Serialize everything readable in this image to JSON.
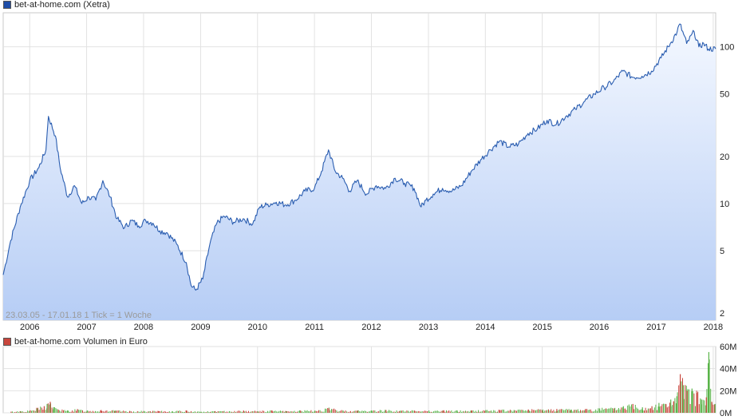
{
  "colors": {
    "price_line": "#2a5db0",
    "price_fill_top": "#f4f8ff",
    "price_fill_bottom": "#b6cdf5",
    "volume_up": "#5ab44a",
    "volume_down": "#c8463c",
    "grid": "#e2e2e2",
    "frame": "#c9c9c9",
    "legend_price": "#1f4ea8",
    "legend_volume": "#c8463c"
  },
  "legend": {
    "price": "bet-at-home.com (Xetra)",
    "volume": "bet-at-home.com Volumen in Euro"
  },
  "range_label": "23.03.05 - 17.01.18   1 Tick = 1 Woche",
  "chart_data": [
    {
      "type": "line",
      "title": "bet-at-home.com (Xetra)",
      "y_scale": "log",
      "ylim": [
        1.8,
        165
      ],
      "y_ticks": [
        2,
        5,
        10,
        20,
        50,
        100
      ],
      "y_tick_labels": [
        "2",
        "5",
        "10",
        "20",
        "50",
        "100"
      ],
      "x_tick_labels": [
        "2006",
        "2007",
        "2008",
        "2009",
        "2010",
        "2011",
        "2012",
        "2013",
        "2014",
        "2015",
        "2016",
        "2017",
        "2018"
      ],
      "xlim": [
        "2005-07-15",
        "2018-01-17"
      ],
      "grid": true,
      "series": [
        {
          "name": "bet-at-home.com (Xetra)",
          "x": [
            "2005-07-15",
            "2005-09-01",
            "2005-11-01",
            "2006-01-01",
            "2006-03-01",
            "2006-04-15",
            "2006-05-01",
            "2006-06-15",
            "2006-07-15",
            "2006-09-01",
            "2006-10-15",
            "2006-12-01",
            "2007-01-15",
            "2007-03-01",
            "2007-04-15",
            "2007-06-01",
            "2007-07-15",
            "2007-09-01",
            "2007-10-15",
            "2007-12-01",
            "2008-01-15",
            "2008-03-01",
            "2008-04-15",
            "2008-06-01",
            "2008-08-01",
            "2008-10-01",
            "2008-11-01",
            "2008-12-01",
            "2009-01-15",
            "2009-03-01",
            "2009-04-15",
            "2009-06-01",
            "2009-08-01",
            "2009-10-01",
            "2009-12-01",
            "2010-01-15",
            "2010-03-01",
            "2010-05-01",
            "2010-07-01",
            "2010-09-01",
            "2010-11-01",
            "2011-01-01",
            "2011-02-15",
            "2011-04-01",
            "2011-05-15",
            "2011-07-01",
            "2011-08-15",
            "2011-10-01",
            "2011-12-01",
            "2012-02-01",
            "2012-04-01",
            "2012-06-01",
            "2012-08-01",
            "2012-10-01",
            "2012-11-15",
            "2012-12-15",
            "2013-02-01",
            "2013-04-01",
            "2013-06-01",
            "2013-08-01",
            "2013-10-01",
            "2013-12-01",
            "2014-02-01",
            "2014-04-01",
            "2014-06-01",
            "2014-08-01",
            "2014-10-01",
            "2014-12-01",
            "2015-02-01",
            "2015-04-01",
            "2015-06-01",
            "2015-08-01",
            "2015-10-01",
            "2015-12-01",
            "2016-02-01",
            "2016-04-01",
            "2016-06-01",
            "2016-08-01",
            "2016-10-01",
            "2016-12-01",
            "2017-02-01",
            "2017-04-01",
            "2017-05-15",
            "2017-06-01",
            "2017-07-15",
            "2017-09-01",
            "2017-10-01",
            "2017-11-01",
            "2017-12-01",
            "2018-01-17"
          ],
          "y": [
            3.5,
            5.8,
            9.5,
            14,
            17,
            22,
            36,
            27,
            17,
            11,
            13,
            10,
            11,
            10.5,
            14,
            11,
            8,
            7,
            7.8,
            7.2,
            7.8,
            7.5,
            6.7,
            6.5,
            5.5,
            4.2,
            3.0,
            2.8,
            3.3,
            5.5,
            7.5,
            8.3,
            7.6,
            8.0,
            7.4,
            9.5,
            9.8,
            10.2,
            9.8,
            10.5,
            12,
            12.5,
            16,
            22,
            16,
            14.5,
            12,
            14,
            11.5,
            13,
            12.5,
            14.5,
            13.5,
            12.5,
            9.5,
            10.5,
            11.5,
            12.5,
            12,
            13,
            16,
            19,
            22,
            25,
            23,
            24,
            28,
            30,
            34,
            32,
            36,
            40,
            45,
            50,
            55,
            60,
            70,
            64,
            65,
            70,
            85,
            105,
            125,
            140,
            105,
            125,
            100,
            105,
            97,
            97
          ]
        }
      ]
    },
    {
      "type": "bar",
      "title": "bet-at-home.com Volumen in Euro",
      "ylim": [
        0,
        60
      ],
      "y_ticks": [
        0,
        20,
        40,
        60
      ],
      "y_tick_labels": [
        "0M",
        "20M",
        "40M",
        "60M"
      ],
      "x_tick_labels": [
        "2006",
        "2007",
        "2008",
        "2009",
        "2010",
        "2011",
        "2012",
        "2013",
        "2014",
        "2015",
        "2016",
        "2017",
        "2018"
      ],
      "xlim": [
        "2005-07-15",
        "2018-01-17"
      ],
      "grid": true,
      "y_unit": "M Euro",
      "series": [
        {
          "name": "Volumen in Euro",
          "x": [
            "2005-09-01",
            "2005-11-01",
            "2006-01-01",
            "2006-02-15",
            "2006-04-01",
            "2006-04-20",
            "2006-05-10",
            "2006-06-01",
            "2006-07-01",
            "2006-09-01",
            "2006-11-01",
            "2007-01-01",
            "2007-04-01",
            "2007-07-01",
            "2007-10-01",
            "2008-01-01",
            "2008-04-01",
            "2008-07-01",
            "2008-10-01",
            "2009-01-01",
            "2009-04-01",
            "2009-07-01",
            "2009-10-01",
            "2010-01-01",
            "2010-04-01",
            "2010-07-01",
            "2010-10-01",
            "2011-01-01",
            "2011-04-01",
            "2011-07-01",
            "2011-10-01",
            "2012-01-01",
            "2012-04-01",
            "2012-07-01",
            "2012-10-01",
            "2013-01-01",
            "2013-04-01",
            "2013-07-01",
            "2013-10-01",
            "2014-01-01",
            "2014-04-01",
            "2014-07-01",
            "2014-10-01",
            "2015-01-01",
            "2015-04-01",
            "2015-07-01",
            "2015-10-01",
            "2016-01-01",
            "2016-04-01",
            "2016-06-01",
            "2016-08-01",
            "2016-10-01",
            "2016-12-01",
            "2017-01-15",
            "2017-03-01",
            "2017-04-01",
            "2017-04-20",
            "2017-05-10",
            "2017-06-01",
            "2017-06-20",
            "2017-07-15",
            "2017-08-15",
            "2017-09-15",
            "2017-10-15",
            "2017-11-15",
            "2017-12-01",
            "2017-12-20",
            "2018-01-10"
          ],
          "values": [
            1,
            1.5,
            2,
            4,
            6,
            8,
            10,
            5,
            3,
            2,
            3,
            2,
            2.5,
            2,
            1.5,
            1.5,
            1.5,
            1.5,
            2,
            1,
            1.5,
            1.5,
            2,
            1.5,
            2,
            1.5,
            2,
            2,
            4,
            2,
            2,
            2,
            2.5,
            2,
            2,
            2,
            2,
            2,
            2,
            2.5,
            2.5,
            2.5,
            3,
            3,
            3.5,
            3,
            3.5,
            4,
            4,
            6,
            8,
            5,
            6,
            9,
            8,
            12,
            10,
            15,
            35,
            25,
            20,
            22,
            18,
            12,
            14,
            55,
            10,
            8
          ]
        }
      ]
    }
  ]
}
